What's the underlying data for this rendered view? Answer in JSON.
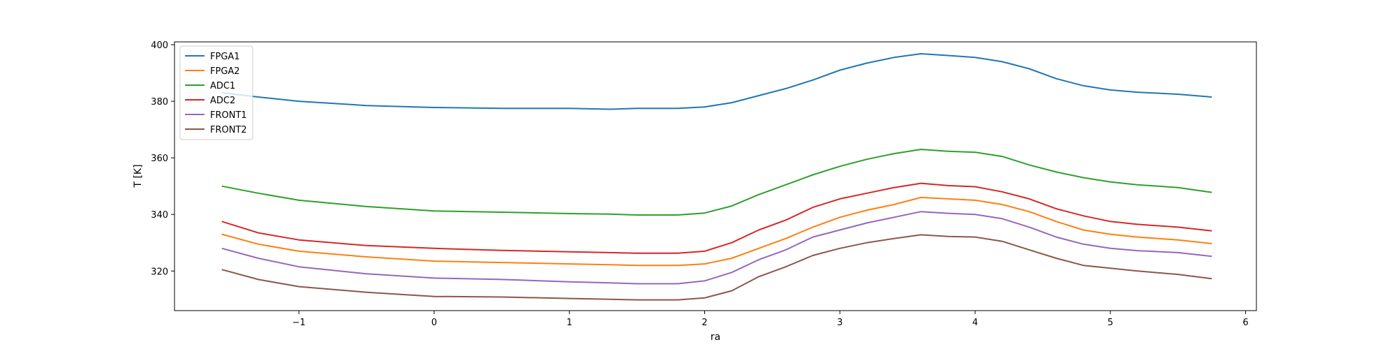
{
  "chart_data": {
    "type": "line",
    "title": "",
    "xlabel": "ra",
    "ylabel": "T [K]",
    "xlim": [
      -1.92,
      6.08
    ],
    "ylim": [
      306,
      401
    ],
    "xticks": [
      -1,
      0,
      1,
      2,
      3,
      4,
      5,
      6
    ],
    "yticks": [
      320,
      340,
      360,
      380,
      400
    ],
    "legend_position": "top-left",
    "grid": false,
    "x": [
      -1.57,
      -1.3,
      -1.0,
      -0.5,
      0.0,
      0.5,
      1.0,
      1.3,
      1.5,
      1.8,
      2.0,
      2.2,
      2.4,
      2.6,
      2.8,
      3.0,
      3.2,
      3.4,
      3.6,
      3.8,
      4.0,
      4.2,
      4.4,
      4.6,
      4.8,
      5.0,
      5.2,
      5.5,
      5.75
    ],
    "series": [
      {
        "name": "FPGA1",
        "color": "#1f77b4",
        "values": [
          383,
          381.5,
          380,
          378.5,
          377.8,
          377.5,
          377.5,
          377.2,
          377.5,
          377.5,
          378,
          379.5,
          382,
          384.5,
          387.5,
          391,
          393.5,
          395.5,
          396.8,
          396.2,
          395.5,
          394,
          391.5,
          388,
          385.5,
          384,
          383.2,
          382.5,
          381.5
        ]
      },
      {
        "name": "FPGA2",
        "color": "#ff7f0e",
        "values": [
          333,
          329.5,
          327,
          325,
          323.5,
          323,
          322.5,
          322.2,
          322,
          322,
          322.5,
          324.5,
          328,
          331.5,
          335.5,
          339,
          341.5,
          343.5,
          346,
          345.5,
          345,
          343.5,
          341,
          337.5,
          334.5,
          333,
          332,
          331,
          329.7
        ]
      },
      {
        "name": "ADC1",
        "color": "#2ca02c",
        "values": [
          350,
          347.5,
          345,
          342.8,
          341.2,
          340.8,
          340.3,
          340.1,
          339.8,
          339.8,
          340.5,
          343,
          347,
          350.5,
          354,
          357,
          359.5,
          361.5,
          363,
          362.3,
          362,
          360.5,
          357.5,
          355,
          353,
          351.5,
          350.5,
          349.5,
          347.8
        ]
      },
      {
        "name": "ADC2",
        "color": "#d62728",
        "values": [
          337.5,
          333.5,
          331,
          329,
          328,
          327.3,
          326.8,
          326.5,
          326.3,
          326.3,
          327,
          330,
          334.5,
          338,
          342.5,
          345.5,
          347.5,
          349.5,
          351,
          350.2,
          349.8,
          348,
          345.5,
          342,
          339.5,
          337.5,
          336.5,
          335.5,
          334.2
        ]
      },
      {
        "name": "FRONT1",
        "color": "#9467bd",
        "values": [
          328,
          324.5,
          321.5,
          319,
          317.5,
          317,
          316.2,
          315.8,
          315.5,
          315.5,
          316.5,
          319.5,
          324,
          327.5,
          332,
          334.5,
          337,
          339,
          341,
          340.4,
          340,
          338.5,
          335.5,
          332,
          329.5,
          328,
          327.2,
          326.5,
          325.2
        ]
      },
      {
        "name": "FRONT2",
        "color": "#8c564b",
        "values": [
          320.5,
          317,
          314.5,
          312.5,
          311,
          310.8,
          310.3,
          310,
          309.8,
          309.8,
          310.5,
          313,
          318,
          321.5,
          325.5,
          328,
          330,
          331.5,
          332.8,
          332.2,
          332,
          330.5,
          327.5,
          324.5,
          322,
          321,
          320,
          318.8,
          317.3
        ]
      }
    ]
  }
}
